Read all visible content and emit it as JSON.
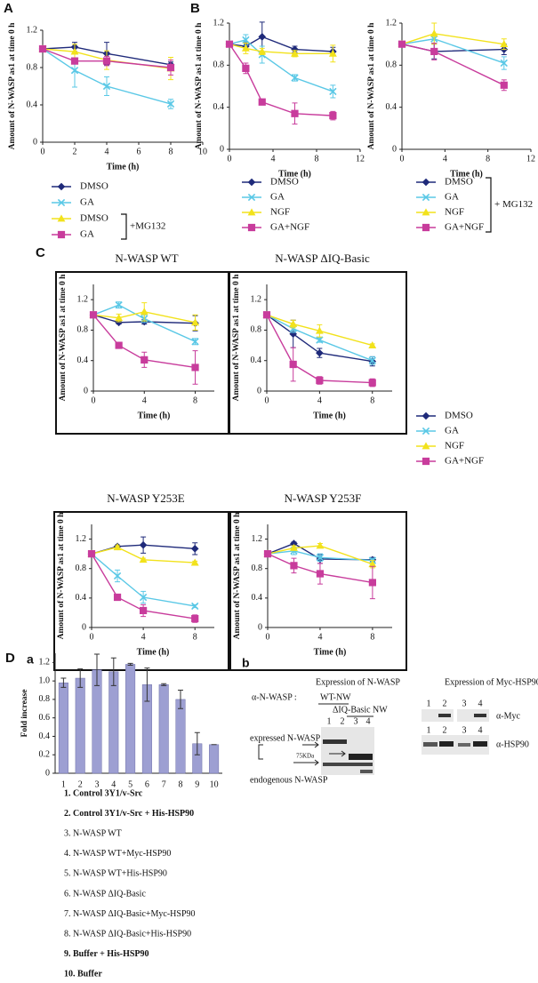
{
  "panel_labels": [
    "A",
    "B",
    "C",
    "D",
    "a",
    "b"
  ],
  "chart_data": [
    {
      "type": "line",
      "xlabel": "Time (h)",
      "ylabel": "Amount of N-WASP as1 at time 0 h",
      "x": [
        0,
        2,
        4,
        8
      ],
      "xlim": [
        0,
        10
      ],
      "xticks": [
        0,
        2,
        4,
        6,
        8,
        10
      ],
      "ylim": [
        0,
        1.2
      ],
      "yticks": [
        0,
        0.4,
        0.8,
        1.2
      ],
      "legend": true,
      "legend_note": "+MG132",
      "series": [
        {
          "name": "DMSO",
          "color": "#1f2a7a",
          "marker": "diamond",
          "values": [
            1,
            1.02,
            0.95,
            0.83
          ],
          "errors": [
            0,
            0.05,
            0.12,
            0.03
          ]
        },
        {
          "name": "GA",
          "color": "#5ac8e6",
          "marker": "x",
          "values": [
            1,
            0.77,
            0.6,
            0.41
          ],
          "errors": [
            0,
            0.18,
            0.1,
            0.05
          ]
        },
        {
          "name": "DMSO",
          "color": "#f2e21c",
          "marker": "triangle",
          "values": [
            1,
            0.97,
            0.88,
            0.79
          ],
          "errors": [
            0,
            0.08,
            0.1,
            0.12
          ]
        },
        {
          "name": "GA",
          "color": "#c83c9c",
          "marker": "square",
          "values": [
            1,
            0.87,
            0.87,
            0.8
          ],
          "errors": [
            0,
            0.03,
            0.05,
            0.08
          ]
        }
      ]
    },
    {
      "type": "line",
      "xlabel": "Time (h)",
      "ylabel": "Amount of N-WASP as1 at time 0 h",
      "x": [
        0,
        1.5,
        3,
        6,
        9.5
      ],
      "xlim": [
        0,
        12
      ],
      "xticks": [
        0,
        4,
        8,
        12
      ],
      "ylim": [
        0,
        1.2
      ],
      "yticks": [
        0,
        0.4,
        0.8,
        1.2
      ],
      "legend": true,
      "series": [
        {
          "name": "DMSO",
          "color": "#1f2a7a",
          "marker": "diamond",
          "values": [
            1,
            0.98,
            1.07,
            0.95,
            0.93
          ],
          "errors": [
            0,
            0.04,
            0.14,
            0.03,
            0.04
          ]
        },
        {
          "name": "GA",
          "color": "#5ac8e6",
          "marker": "x",
          "values": [
            1,
            1.04,
            0.9,
            0.68,
            0.55
          ],
          "errors": [
            0,
            0.05,
            0.08,
            0.03,
            0.06
          ]
        },
        {
          "name": "NGF",
          "color": "#f2e21c",
          "marker": "triangle",
          "values": [
            1,
            0.96,
            0.93,
            0.91,
            0.91
          ],
          "errors": [
            0,
            0.05,
            0.03,
            0.03,
            0.08
          ]
        },
        {
          "name": "GA+NGF",
          "color": "#c83c9c",
          "marker": "square",
          "values": [
            1,
            0.77,
            0.45,
            0.34,
            0.32
          ],
          "errors": [
            0,
            0.05,
            0.02,
            0.1,
            0.04
          ]
        }
      ]
    },
    {
      "type": "line",
      "xlabel": "Time (h)",
      "ylabel": "Amount of N-WASP as1 at time 0 h",
      "x": [
        0,
        3,
        9.5
      ],
      "xlim": [
        0,
        12
      ],
      "xticks": [
        0,
        4,
        8,
        12
      ],
      "ylim": [
        0,
        1.2
      ],
      "yticks": [
        0,
        0.4,
        0.8,
        1.2
      ],
      "legend": true,
      "legend_note": "+ MG132",
      "series": [
        {
          "name": "DMSO",
          "color": "#1f2a7a",
          "marker": "diamond",
          "values": [
            1,
            0.93,
            0.95
          ],
          "errors": [
            0,
            0.07,
            0.05
          ]
        },
        {
          "name": "GA",
          "color": "#5ac8e6",
          "marker": "x",
          "values": [
            1,
            1.05,
            0.82
          ],
          "errors": [
            0,
            0.04,
            0.06
          ]
        },
        {
          "name": "NGF",
          "color": "#f2e21c",
          "marker": "triangle",
          "values": [
            1,
            1.1,
            1.0
          ],
          "errors": [
            0,
            0.1,
            0.05
          ]
        },
        {
          "name": "GA+NGF",
          "color": "#c83c9c",
          "marker": "square",
          "values": [
            1,
            0.93,
            0.61
          ],
          "errors": [
            0,
            0.08,
            0.05
          ]
        }
      ]
    },
    {
      "type": "line",
      "title": "N-WASP WT",
      "frame": true,
      "xlabel": "Time (h)",
      "ylabel": "Amount of N-WASP as1 at time 0 h",
      "x": [
        0,
        2,
        4,
        8
      ],
      "xlim": [
        0,
        9.5
      ],
      "xticks": [
        0,
        4,
        8
      ],
      "ylim": [
        0,
        1.4
      ],
      "yticks": [
        0,
        0.4,
        0.8,
        1.2
      ],
      "legend": true,
      "series": [
        {
          "name": "DMSO",
          "color": "#1f2a7a",
          "marker": "diamond",
          "values": [
            1,
            0.9,
            0.91,
            0.89
          ],
          "errors": [
            0,
            0.02,
            0.03,
            0.1
          ]
        },
        {
          "name": "GA",
          "color": "#5ac8e6",
          "marker": "x",
          "values": [
            1,
            1.13,
            0.95,
            0.65
          ],
          "errors": [
            0,
            0.04,
            0.05,
            0.04
          ]
        },
        {
          "name": "NGF",
          "color": "#f2e21c",
          "marker": "triangle",
          "values": [
            1,
            0.96,
            1.04,
            0.9
          ],
          "errors": [
            0,
            0.05,
            0.12,
            0.1
          ]
        },
        {
          "name": "GA+NGF",
          "color": "#c83c9c",
          "marker": "square",
          "values": [
            1,
            0.6,
            0.41,
            0.31
          ],
          "errors": [
            0,
            0.02,
            0.1,
            0.22
          ]
        }
      ]
    },
    {
      "type": "line",
      "title": "N-WASP ΔIQ-Basic",
      "frame": true,
      "xlabel": "Time (h)",
      "ylabel": "Amount of N-WASP as1 at time 0 h",
      "x": [
        0,
        2,
        4,
        8
      ],
      "xlim": [
        0,
        9.5
      ],
      "xticks": [
        0,
        4,
        8
      ],
      "ylim": [
        0,
        1.4
      ],
      "yticks": [
        0,
        0.4,
        0.8,
        1.2
      ],
      "series": [
        {
          "name": "DMSO",
          "color": "#1f2a7a",
          "marker": "diamond",
          "values": [
            1,
            0.75,
            0.5,
            0.39
          ],
          "errors": [
            0,
            0.18,
            0.06,
            0.06
          ]
        },
        {
          "name": "GA",
          "color": "#5ac8e6",
          "marker": "x",
          "values": [
            1,
            0.82,
            0.67,
            0.4
          ],
          "errors": [
            0,
            0.05,
            0.03,
            0.05
          ]
        },
        {
          "name": "NGF",
          "color": "#f2e21c",
          "marker": "triangle",
          "values": [
            1,
            0.88,
            0.79,
            0.6
          ],
          "errors": [
            0,
            0.05,
            0.08,
            0.02
          ]
        },
        {
          "name": "GA+NGF",
          "color": "#c83c9c",
          "marker": "square",
          "values": [
            1,
            0.35,
            0.14,
            0.11
          ],
          "errors": [
            0,
            0.22,
            0.05,
            0.05
          ]
        }
      ]
    },
    {
      "type": "line",
      "title": "N-WASP Y253E",
      "frame": true,
      "xlabel": "Time (h)",
      "ylabel": "Amount of N-WASP as1 at time 0 h",
      "x": [
        0,
        2,
        4,
        8
      ],
      "xlim": [
        0,
        9.5
      ],
      "xticks": [
        0,
        4,
        8
      ],
      "ylim": [
        0,
        1.4
      ],
      "yticks": [
        0,
        0.4,
        0.8,
        1.2
      ],
      "series": [
        {
          "name": "DMSO",
          "color": "#1f2a7a",
          "marker": "diamond",
          "values": [
            1,
            1.1,
            1.12,
            1.07
          ],
          "errors": [
            0,
            0.02,
            0.11,
            0.08
          ]
        },
        {
          "name": "GA",
          "color": "#5ac8e6",
          "marker": "x",
          "values": [
            1,
            0.7,
            0.41,
            0.29
          ],
          "errors": [
            0,
            0.08,
            0.08,
            0.02
          ]
        },
        {
          "name": "NGF",
          "color": "#f2e21c",
          "marker": "triangle",
          "values": [
            1,
            1.09,
            0.92,
            0.88
          ],
          "errors": [
            0,
            0.02,
            0.02,
            0.02
          ]
        },
        {
          "name": "GA+NGF",
          "color": "#c83c9c",
          "marker": "square",
          "values": [
            1,
            0.41,
            0.23,
            0.12
          ],
          "errors": [
            0,
            0.02,
            0.08,
            0.05
          ]
        }
      ]
    },
    {
      "type": "line",
      "title": "N-WASP Y253F",
      "frame": true,
      "xlabel": "Time (h)",
      "ylabel": "Amount of N-WASP as1 at time 0 h",
      "x": [
        0,
        2,
        4,
        8
      ],
      "xlim": [
        0,
        9.5
      ],
      "xticks": [
        0,
        4,
        8
      ],
      "ylim": [
        0,
        1.4
      ],
      "yticks": [
        0,
        0.4,
        0.8,
        1.2
      ],
      "series": [
        {
          "name": "DMSO",
          "color": "#1f2a7a",
          "marker": "diamond",
          "values": [
            1,
            1.14,
            0.93,
            0.92
          ],
          "errors": [
            0,
            0.02,
            0.06,
            0.03
          ]
        },
        {
          "name": "GA",
          "color": "#5ac8e6",
          "marker": "x",
          "values": [
            1,
            1.04,
            0.95,
            0.91
          ],
          "errors": [
            0,
            0.05,
            0.05,
            0.03
          ]
        },
        {
          "name": "NGF",
          "color": "#f2e21c",
          "marker": "triangle",
          "values": [
            1,
            1.08,
            1.11,
            0.86
          ],
          "errors": [
            0,
            0.03,
            0.03,
            0.05
          ]
        },
        {
          "name": "GA+NGF",
          "color": "#c83c9c",
          "marker": "square",
          "values": [
            1,
            0.84,
            0.73,
            0.61
          ],
          "errors": [
            0,
            0.1,
            0.14,
            0.22
          ]
        }
      ]
    },
    {
      "type": "bar",
      "ylabel": "Fold increase",
      "color": "#9d9fd2",
      "categories": [
        "1",
        "2",
        "3",
        "4",
        "5",
        "6",
        "7",
        "8",
        "9",
        "10"
      ],
      "values": [
        0.98,
        1.03,
        1.12,
        1.1,
        1.18,
        0.96,
        0.96,
        0.8,
        0.32,
        0.31
      ],
      "errors": [
        0.05,
        0.1,
        0.17,
        0.15,
        0.01,
        0.18,
        0.01,
        0.1,
        0.12,
        0
      ],
      "ylim": [
        0,
        1.3
      ],
      "yticks": [
        0,
        0.2,
        0.4,
        0.6,
        0.8,
        {
          "value": 1,
          "label": "1.0"
        },
        1.2
      ],
      "key": [
        "1. Control 3Y1/v-Src",
        "2. Control 3Y1/v-Src + His-HSP90",
        "3. N-WASP WT",
        "4. N-WASP WT+Myc-HSP90",
        "5. N-WASP WT+His-HSP90",
        "6. N-WASP ΔIQ-Basic",
        "7. N-WASP ΔIQ-Basic+Myc-HSP90",
        "8. N-WASP ΔIQ-Basic+His-HSP90",
        "9. Buffer + His-HSP90",
        "10. Buffer"
      ]
    }
  ],
  "blot": {
    "title_left": "Expression of N-WASP",
    "title_right": "Expression of Myc-HSP90",
    "antibody": "α-N-WASP :",
    "group1": "WT-NW",
    "group2": "ΔIQ-Basic NW",
    "lanes": [
      "1",
      "2",
      "3",
      "4"
    ],
    "expressed": "expressed N-WASP",
    "size_marker": "75KDa",
    "endogenous": "endogenous N-WASP",
    "myc": "α-Myc",
    "hsp90": "α-HSP90"
  }
}
